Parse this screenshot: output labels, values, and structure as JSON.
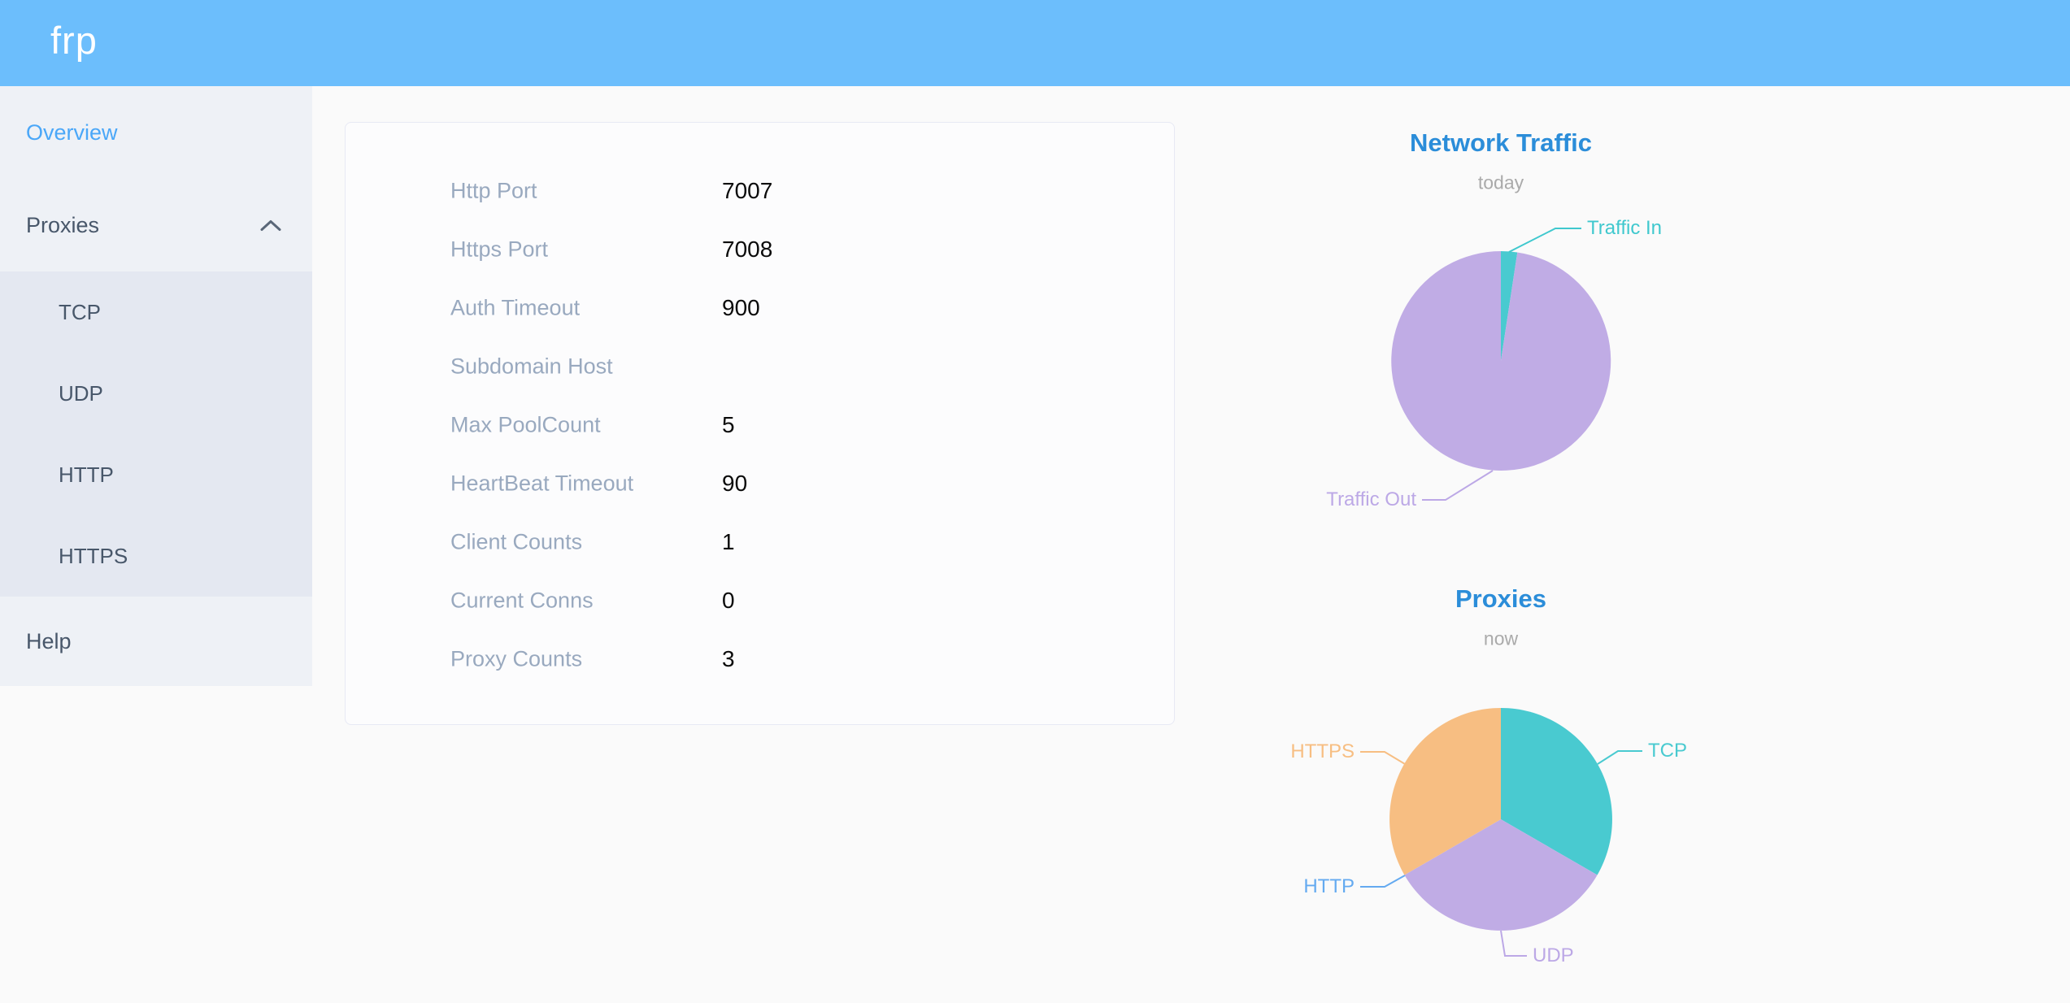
{
  "app": {
    "logo_text": "frp"
  },
  "sidebar": {
    "overview_label": "Overview",
    "proxies_label": "Proxies",
    "proxies_children": {
      "tcp": "TCP",
      "udp": "UDP",
      "http": "HTTP",
      "https": "HTTPS"
    },
    "help_label": "Help"
  },
  "server_info": {
    "rows": [
      {
        "label": "Http Port",
        "value": "7007"
      },
      {
        "label": "Https Port",
        "value": "7008"
      },
      {
        "label": "Auth Timeout",
        "value": "900"
      },
      {
        "label": "Subdomain Host",
        "value": ""
      },
      {
        "label": "Max PoolCount",
        "value": "5"
      },
      {
        "label": "HeartBeat Timeout",
        "value": "90"
      },
      {
        "label": "Client Counts",
        "value": "1"
      },
      {
        "label": "Current Conns",
        "value": "0"
      },
      {
        "label": "Proxy Counts",
        "value": "3"
      }
    ]
  },
  "chart_data": [
    {
      "type": "pie",
      "title": "Network Traffic",
      "subtitle": "today",
      "legend": "none",
      "labels": "outside",
      "slices": [
        {
          "name": "Traffic In",
          "value": 2.4,
          "unit": "pct_estimated",
          "color": "#49cad0",
          "label_color": "#3fc8ce"
        },
        {
          "name": "Traffic Out",
          "value": 97.6,
          "unit": "pct_estimated",
          "color": "#c0ace5",
          "label_color": "#bca8e6"
        }
      ]
    },
    {
      "type": "pie",
      "title": "Proxies",
      "subtitle": "now",
      "legend": "none",
      "labels": "outside",
      "slices": [
        {
          "name": "TCP",
          "value": 1,
          "color": "#49cad0",
          "label_color": "#49cad0"
        },
        {
          "name": "UDP",
          "value": 1,
          "color": "#c0ace5",
          "label_color": "#bca8e6"
        },
        {
          "name": "HTTP",
          "value": 0,
          "color": "#64aaf0",
          "label_color": "#64aaf0"
        },
        {
          "name": "HTTPS",
          "value": 1,
          "color": "#f7be82",
          "label_color": "#f7be82"
        }
      ]
    }
  ],
  "colors": {
    "header_bg": "#6cbefc",
    "sidebar_bg": "#eef1f6",
    "submenu_bg": "#e4e8f1",
    "sidebar_text": "#48576a",
    "sidebar_active_text": "#4aa7f8",
    "config_label_gray": "#99a9bf",
    "config_value_black": "#0b0b0b",
    "chart_title_blue": "#2b8dd9",
    "chart_subtitle_gray": "#aaaaaa",
    "page_bg": "#fafafa",
    "card_border": "#e7e9f4"
  }
}
